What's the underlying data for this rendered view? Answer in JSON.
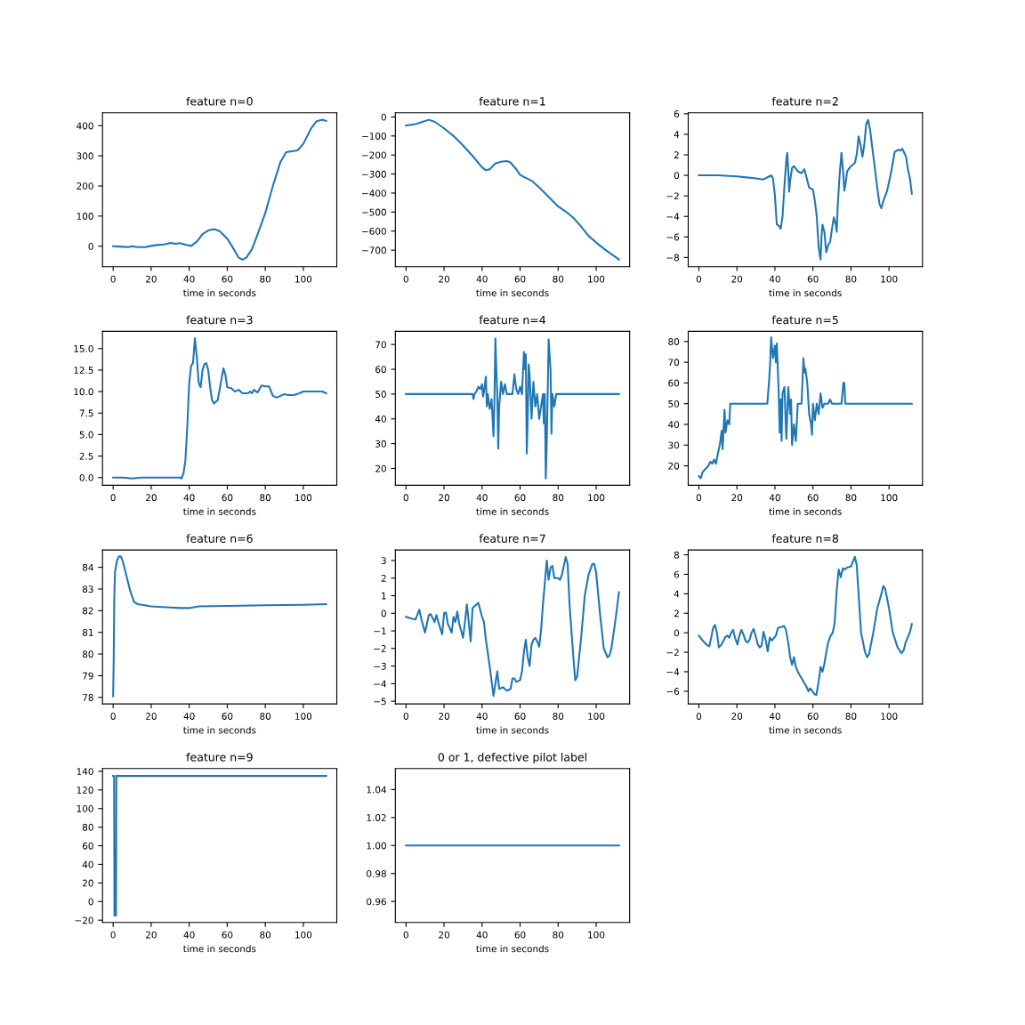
{
  "chart_data": [
    {
      "type": "line",
      "title": "feature n=0",
      "xlabel": "time in seconds",
      "xlim": [
        -5.6,
        117.6
      ],
      "xticks": [
        0,
        20,
        40,
        60,
        80,
        100
      ],
      "ylim": [
        -68,
        443
      ],
      "yticks": [
        0,
        100,
        200,
        300,
        400
      ],
      "series": [
        {
          "color": "#1f77b4",
          "x": [
            0,
            5,
            8,
            10,
            13,
            17,
            20,
            23,
            27,
            30,
            33,
            35,
            38,
            41,
            44,
            47,
            50,
            53,
            56,
            60,
            63,
            66,
            68,
            70,
            73,
            76,
            80,
            84,
            88,
            91,
            94,
            97,
            100,
            104,
            107,
            110,
            112
          ],
          "values": [
            0,
            -2,
            -3,
            0,
            -3,
            -3,
            1,
            4,
            6,
            11,
            8,
            10,
            5,
            1,
            15,
            40,
            52,
            57,
            50,
            25,
            -5,
            -38,
            -45,
            -38,
            -10,
            40,
            110,
            200,
            280,
            312,
            315,
            318,
            340,
            390,
            415,
            420,
            416
          ]
        }
      ]
    },
    {
      "type": "line",
      "title": "feature n=1",
      "xlabel": "time in seconds",
      "xlim": [
        -5.6,
        117.6
      ],
      "xticks": [
        0,
        20,
        40,
        60,
        80,
        100
      ],
      "ylim": [
        -787,
        22
      ],
      "yticks": [
        -700,
        -600,
        -500,
        -400,
        -300,
        -200,
        -100,
        0
      ],
      "series": [
        {
          "color": "#1f77b4",
          "x": [
            0,
            5,
            9,
            12,
            15,
            20,
            25,
            30,
            35,
            40,
            42,
            44,
            47,
            50,
            53,
            55,
            58,
            60,
            63,
            66,
            70,
            75,
            80,
            85,
            88,
            92,
            96,
            100,
            105,
            110,
            112
          ],
          "values": [
            -45,
            -38,
            -25,
            -15,
            -25,
            -60,
            -100,
            -150,
            -205,
            -265,
            -280,
            -275,
            -245,
            -235,
            -232,
            -240,
            -275,
            -305,
            -320,
            -335,
            -370,
            -420,
            -470,
            -505,
            -530,
            -575,
            -625,
            -660,
            -700,
            -735,
            -750
          ]
        }
      ]
    },
    {
      "type": "line",
      "title": "feature n=2",
      "xlabel": "time in seconds",
      "xlim": [
        -5.6,
        117.6
      ],
      "xticks": [
        0,
        20,
        40,
        60,
        80,
        100
      ],
      "ylim": [
        -8.9,
        6.1
      ],
      "yticks": [
        -8,
        -6,
        -4,
        -2,
        0,
        2,
        4,
        6
      ],
      "series": [
        {
          "color": "#1f77b4",
          "x": [
            0,
            10,
            20,
            25,
            30,
            34,
            37,
            38,
            39,
            40,
            41,
            42,
            43,
            44,
            45,
            46,
            46.5,
            47,
            47.5,
            48,
            49,
            50,
            52,
            54,
            55.5,
            57,
            58,
            60,
            61,
            62,
            63,
            64,
            64.5,
            65,
            66,
            67,
            68,
            69,
            70,
            71,
            72,
            72.5,
            73,
            74,
            75,
            76,
            76.5,
            77,
            78,
            80,
            82,
            83,
            84,
            85,
            86,
            87,
            88,
            89,
            90,
            91,
            92,
            94,
            95,
            96,
            97,
            99,
            101,
            103,
            105,
            106,
            107,
            109,
            110,
            111,
            112
          ],
          "values": [
            0,
            0,
            -0.1,
            -0.2,
            -0.3,
            -0.4,
            -0.1,
            0,
            -0.3,
            -2,
            -4.8,
            -4.9,
            -5.2,
            -4,
            -1,
            1.5,
            2.2,
            0.5,
            -1.6,
            -0.5,
            0.7,
            0.9,
            0.4,
            0.2,
            0.6,
            -0.5,
            -1.2,
            -1.4,
            -2.5,
            -4,
            -7,
            -8.2,
            -6,
            -4.8,
            -5.5,
            -7.5,
            -6.8,
            -6.5,
            -5.2,
            -4.1,
            -4.8,
            -5.5,
            -3,
            0,
            2.2,
            0,
            -1.5,
            -1,
            0.4,
            0.9,
            1.2,
            2,
            3.8,
            3,
            1.8,
            3,
            5,
            5.4,
            4.5,
            3,
            1.5,
            -1.5,
            -2.8,
            -3.2,
            -2.5,
            -1.5,
            0.2,
            2.3,
            2.5,
            2.4,
            2.6,
            1.8,
            0.5,
            -0.3,
            -1.8
          ]
        }
      ]
    },
    {
      "type": "line",
      "title": "feature n=3",
      "xlabel": "time in seconds",
      "xlim": [
        -5.6,
        117.6
      ],
      "xticks": [
        0,
        20,
        40,
        60,
        80,
        100
      ],
      "ylim": [
        -0.9,
        17.0
      ],
      "yticks": [
        {
          "value": 0,
          "label": "0.0"
        },
        {
          "value": 2.5,
          "label": "2.5"
        },
        {
          "value": 5,
          "label": "5.0"
        },
        {
          "value": 7.5,
          "label": "7.5"
        },
        {
          "value": 10,
          "label": "10.0"
        },
        {
          "value": 12.5,
          "label": "12.5"
        },
        {
          "value": 15,
          "label": "15.0"
        }
      ],
      "series": [
        {
          "color": "#1f77b4",
          "x": [
            0,
            5,
            10,
            15,
            20,
            30,
            35,
            36,
            37,
            38,
            39,
            40,
            41,
            42,
            43,
            44,
            45,
            46,
            47,
            48,
            49,
            50,
            51,
            52,
            53,
            55,
            57,
            58,
            59,
            60,
            62,
            64,
            66,
            68,
            71,
            72,
            73,
            74,
            76,
            78,
            80,
            82,
            84,
            86,
            88,
            90,
            92,
            95,
            98,
            100,
            105,
            110,
            112
          ],
          "values": [
            0,
            0,
            -0.1,
            0,
            0,
            0,
            0,
            -0.1,
            0.5,
            2,
            6,
            11,
            13,
            13.3,
            16.2,
            14,
            11,
            10.5,
            12.5,
            13.2,
            13.3,
            12.5,
            10.5,
            9,
            8.6,
            9,
            11.5,
            12.7,
            12,
            10.5,
            10.4,
            10,
            10.2,
            9.8,
            9.8,
            10,
            9.8,
            10.2,
            9.9,
            10.7,
            10.6,
            10.6,
            9.5,
            9.3,
            9.5,
            9.7,
            9.6,
            9.6,
            9.8,
            10,
            10,
            10,
            9.8
          ]
        }
      ]
    },
    {
      "type": "line",
      "title": "feature n=4",
      "xlabel": "time in seconds",
      "xlim": [
        -5.6,
        117.6
      ],
      "xticks": [
        0,
        20,
        40,
        60,
        80,
        100
      ],
      "ylim": [
        13.2,
        75.3
      ],
      "yticks": [
        20,
        30,
        40,
        50,
        60,
        70
      ],
      "series": [
        {
          "color": "#1f77b4",
          "x": [
            0,
            35,
            35.5,
            36,
            37,
            38,
            39,
            40,
            40.5,
            41,
            42,
            42.5,
            43,
            44,
            45,
            46,
            46.5,
            47,
            47.5,
            48,
            48.5,
            49,
            50,
            51,
            52,
            53,
            56,
            57,
            58,
            59,
            60,
            61,
            62,
            62.5,
            63,
            63.5,
            64,
            64.5,
            65,
            66,
            67,
            68,
            69,
            70,
            71,
            72,
            72.5,
            73,
            73.5,
            74,
            74.5,
            75,
            76,
            76.5,
            77,
            78,
            79,
            112
          ],
          "values": [
            50,
            50,
            48,
            50,
            51,
            53,
            52,
            54,
            49,
            51,
            57,
            45,
            50,
            44,
            48,
            33,
            47,
            72.5,
            60,
            50,
            28,
            45,
            55,
            50,
            54,
            50,
            50,
            58,
            52,
            50,
            53,
            50,
            67,
            60,
            66,
            26,
            40,
            62,
            58,
            40,
            55,
            45,
            50,
            40,
            45,
            50,
            38,
            50,
            16,
            30,
            50,
            72,
            60,
            34,
            50,
            45,
            50,
            50
          ]
        }
      ]
    },
    {
      "type": "line",
      "title": "feature n=5",
      "xlabel": "time in seconds",
      "xlim": [
        -5.6,
        117.6
      ],
      "xticks": [
        0,
        20,
        40,
        60,
        80,
        100
      ],
      "ylim": [
        10.6,
        84.9
      ],
      "yticks": [
        20,
        30,
        40,
        50,
        60,
        70,
        80
      ],
      "series": [
        {
          "color": "#1f77b4",
          "x": [
            0,
            1,
            2,
            3,
            5,
            6,
            7,
            8,
            9,
            10,
            11,
            12,
            12.5,
            13,
            13.5,
            14,
            15,
            16,
            16.5,
            36,
            37,
            37.5,
            38,
            39,
            40,
            40.5,
            41,
            42,
            42.5,
            43,
            43.5,
            44,
            45,
            45.5,
            46,
            47,
            48,
            48.5,
            49,
            50,
            51,
            52,
            54,
            55,
            55.5,
            56,
            57,
            58,
            59,
            59.5,
            60,
            61,
            62,
            63,
            64,
            65,
            66,
            68,
            69,
            70,
            75,
            76,
            76.5,
            77,
            112
          ],
          "values": [
            15,
            14,
            17,
            18,
            20,
            22,
            21,
            23,
            21,
            26,
            30,
            37,
            28,
            38,
            47,
            36,
            42,
            40,
            50,
            50,
            62,
            70,
            82,
            72,
            78,
            70,
            79,
            55,
            36,
            52,
            32,
            55,
            58,
            45,
            33,
            58,
            45,
            52,
            30,
            40,
            32,
            50,
            50,
            72,
            65,
            67,
            60,
            45,
            40,
            35,
            50,
            42,
            50,
            45,
            55,
            48,
            50,
            50,
            52,
            50,
            50,
            60,
            60,
            50,
            50
          ]
        }
      ]
    },
    {
      "type": "line",
      "title": "feature n=6",
      "xlabel": "time in seconds",
      "xlim": [
        -5.6,
        117.6
      ],
      "xticks": [
        0,
        20,
        40,
        60,
        80,
        100
      ],
      "ylim": [
        77.7,
        84.8
      ],
      "yticks": [
        78,
        79,
        80,
        81,
        82,
        83,
        84
      ],
      "series": [
        {
          "color": "#1f77b4",
          "x": [
            0,
            0.3,
            0.6,
            1,
            2,
            3,
            4,
            5,
            7,
            9,
            11,
            13,
            20,
            30,
            35,
            40,
            45,
            60,
            80,
            100,
            112
          ],
          "values": [
            78.05,
            79.8,
            82.6,
            83.8,
            84.3,
            84.5,
            84.5,
            84.3,
            83.6,
            82.9,
            82.4,
            82.3,
            82.2,
            82.15,
            82.12,
            82.12,
            82.2,
            82.22,
            82.25,
            82.27,
            82.3
          ]
        }
      ]
    },
    {
      "type": "line",
      "title": "feature n=7",
      "xlabel": "time in seconds",
      "xlim": [
        -5.6,
        117.6
      ],
      "xticks": [
        0,
        20,
        40,
        60,
        80,
        100
      ],
      "ylim": [
        -5.15,
        3.6
      ],
      "yticks": [
        -5,
        -4,
        -3,
        -2,
        -1,
        0,
        1,
        2,
        3
      ],
      "series": [
        {
          "color": "#1f77b4",
          "x": [
            0,
            3,
            5,
            7,
            8,
            10,
            12,
            13,
            15,
            16,
            17,
            19,
            20,
            21,
            22,
            24,
            25,
            26,
            27,
            28,
            29,
            30,
            31,
            32,
            33,
            34,
            35,
            37,
            38,
            40,
            41,
            42,
            44,
            46,
            47,
            48,
            49,
            51,
            53,
            55,
            56,
            57,
            58,
            60,
            61,
            62,
            63,
            64,
            65,
            66,
            67,
            68,
            69,
            70,
            71,
            72,
            73,
            74,
            75,
            76,
            77,
            78,
            80,
            81,
            82,
            84,
            85,
            86,
            88,
            89,
            90,
            92,
            94,
            96,
            98,
            99,
            100,
            102,
            104,
            106,
            107,
            108,
            110,
            112
          ],
          "values": [
            -0.2,
            -0.3,
            -0.35,
            0.2,
            -0.3,
            -1.1,
            -0.1,
            -0.05,
            -0.5,
            -0.1,
            -0.5,
            -1.2,
            0,
            0.05,
            -0.6,
            -1.1,
            -0.2,
            -0.5,
            0.1,
            -0.6,
            -1,
            -1.4,
            -0.5,
            0.5,
            -0.5,
            -1.6,
            0.3,
            0.5,
            0.6,
            -0.2,
            -0.5,
            -1.5,
            -3,
            -4.7,
            -4,
            -3.3,
            -4.3,
            -4.2,
            -4.4,
            -4.3,
            -3.7,
            -3.7,
            -3.9,
            -3.8,
            -3.3,
            -2.2,
            -1.5,
            -2.5,
            -3,
            -1.8,
            -1.5,
            -1.4,
            -1.6,
            -1.9,
            -1,
            0.5,
            1.7,
            3,
            1.9,
            2.6,
            2.7,
            2,
            2,
            1.9,
            2.2,
            3.2,
            2.8,
            0.5,
            -2.5,
            -3.8,
            -3.6,
            -1.5,
            1,
            2.2,
            2.8,
            2.8,
            2.3,
            0,
            -2,
            -2.5,
            -2.4,
            -2,
            -0.5,
            1.2
          ]
        }
      ]
    },
    {
      "type": "line",
      "title": "feature n=8",
      "xlabel": "time in seconds",
      "xlim": [
        -5.6,
        117.6
      ],
      "xticks": [
        0,
        20,
        40,
        60,
        80,
        100
      ],
      "ylim": [
        -7.3,
        8.5
      ],
      "yticks": [
        -6,
        -4,
        -2,
        0,
        2,
        4,
        6,
        8
      ],
      "series": [
        {
          "color": "#1f77b4",
          "x": [
            0,
            2,
            4,
            5.5,
            6.5,
            7.5,
            8.5,
            9.5,
            10.5,
            12,
            14,
            15,
            16,
            17,
            18,
            19,
            20.3,
            21.3,
            22.4,
            23.5,
            24.5,
            25.6,
            26.7,
            27.7,
            28.8,
            29.8,
            31,
            32,
            33,
            34,
            35.2,
            36.2,
            37.3,
            38.4,
            40.5,
            41.6,
            43.7,
            44.8,
            45.8,
            47,
            48,
            49,
            50,
            51,
            52,
            54.4,
            56.5,
            57.6,
            58.6,
            59.7,
            60.8,
            61.8,
            63,
            64,
            65,
            66,
            67,
            68,
            69.3,
            70.4,
            71.4,
            72.5,
            73.5,
            74.6,
            75.7,
            76.8,
            78,
            80,
            81,
            82,
            83,
            84,
            85.3,
            87.4,
            88.5,
            89.5,
            91.7,
            93.8,
            96,
            97,
            98,
            100,
            102,
            104.5,
            106.6,
            107.7,
            108.7,
            110.9,
            112
          ],
          "values": [
            -0.3,
            -0.8,
            -1.2,
            -1.4,
            -0.5,
            0.5,
            0.8,
            0,
            -1.5,
            -1.2,
            -0.4,
            -0.3,
            -0.5,
            0,
            0.3,
            -0.5,
            -1.2,
            -0.3,
            0.3,
            -0.2,
            -0.8,
            -1,
            -0.7,
            0,
            0.4,
            -0.3,
            -1.2,
            -1.5,
            -1.3,
            0.1,
            -0.8,
            -1.9,
            -0.5,
            -0.8,
            -0.3,
            0.5,
            0.6,
            0.7,
            0.3,
            -1,
            -2.5,
            -3.3,
            -2.5,
            -3.5,
            -4,
            -4.8,
            -5.5,
            -6,
            -5.7,
            -6,
            -6.3,
            -6.4,
            -5,
            -3.5,
            -4,
            -3.2,
            -2,
            -1,
            -0.3,
            0,
            1,
            4.4,
            6.5,
            5.7,
            6.6,
            6.5,
            6.7,
            6.8,
            7.3,
            7.8,
            7,
            4,
            0,
            -2,
            -2.5,
            -2.2,
            0,
            2.5,
            4,
            4.8,
            4.5,
            2.5,
            0,
            -1.5,
            -2.1,
            -1.8,
            -1,
            0,
            0.9
          ]
        }
      ]
    },
    {
      "type": "line",
      "title": "feature n=9",
      "xlabel": "time in seconds",
      "xlim": [
        -5.6,
        117.6
      ],
      "xticks": [
        0,
        20,
        40,
        60,
        80,
        100
      ],
      "ylim": [
        -22.5,
        143
      ],
      "yticks": [
        -20,
        0,
        20,
        40,
        60,
        80,
        100,
        120,
        140
      ],
      "series": [
        {
          "color": "#1f77b4",
          "x": [
            0,
            0.5,
            0.7,
            1.5,
            1.7,
            112
          ],
          "values": [
            135,
            135,
            -15,
            -15,
            135,
            135
          ]
        }
      ]
    },
    {
      "type": "line",
      "title": "0 or 1, defective pilot label",
      "xlabel": "time in seconds",
      "xlim": [
        -5.6,
        117.6
      ],
      "xticks": [
        0,
        20,
        40,
        60,
        80,
        100
      ],
      "ylim": [
        0.945,
        1.055
      ],
      "yticks": [
        {
          "value": 0.96,
          "label": "0.96"
        },
        {
          "value": 0.98,
          "label": "0.98"
        },
        {
          "value": 1.0,
          "label": "1.00"
        },
        {
          "value": 1.02,
          "label": "1.02"
        },
        {
          "value": 1.04,
          "label": "1.04"
        }
      ],
      "series": [
        {
          "color": "#1f77b4",
          "x": [
            0,
            112
          ],
          "values": [
            1,
            1
          ]
        }
      ]
    }
  ]
}
